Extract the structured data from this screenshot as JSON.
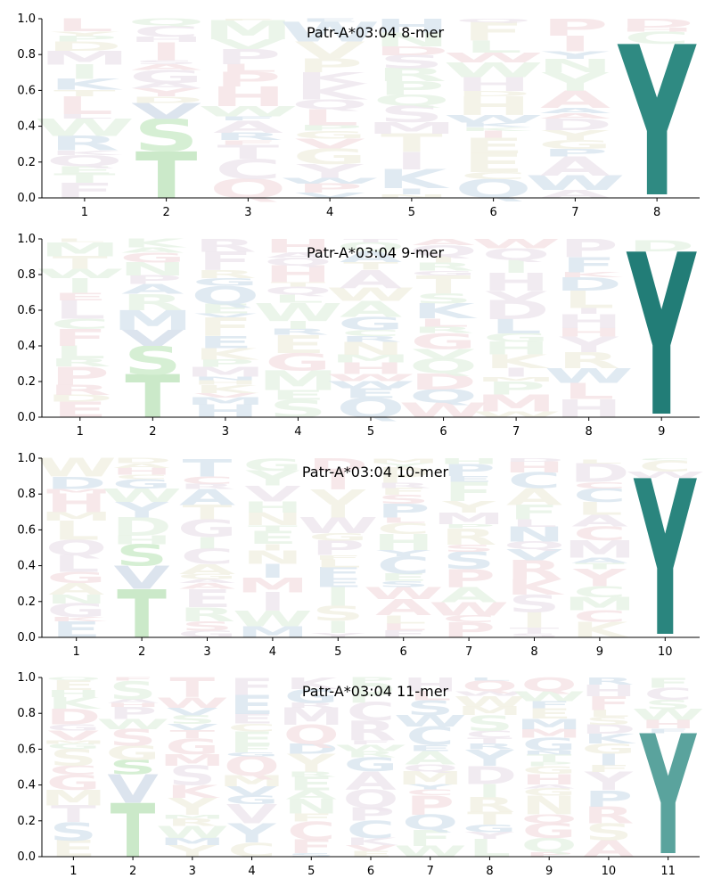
{
  "colors": {
    "background": "#ffffff",
    "axis": "#000000",
    "faded_letters": [
      "#dbe6f0",
      "#e8f3e6",
      "#f6e4e6",
      "#efe7ef",
      "#f2f1e4"
    ],
    "faded_S": "#d6efd4",
    "faded_T": "#cbe9c9",
    "faded_V": "#dce4ee"
  },
  "chart_data": [
    {
      "type": "sequence-logo",
      "title": "Patr-A*03:04 8-mer",
      "xlabel": "",
      "ylabel": "",
      "ylim": [
        0,
        1.0
      ],
      "yticks": [
        "0.0",
        "0.2",
        "0.4",
        "0.6",
        "0.8",
        "1.0"
      ],
      "grid": false,
      "positions": [
        "1",
        "2",
        "3",
        "4",
        "5",
        "6",
        "7",
        "8"
      ],
      "anchor": {
        "position": "8",
        "letter": "Y",
        "value": 0.86,
        "color": "#2f8a82"
      },
      "highlights": [
        {
          "position": "2",
          "letter": "T",
          "value": 0.26,
          "color": "#cbe9c9"
        },
        {
          "position": "2",
          "letter": "S",
          "value": 0.18,
          "color": "#d6efd4"
        },
        {
          "position": "2",
          "letter": "V",
          "value": 0.09,
          "color": "#dce4ee"
        }
      ]
    },
    {
      "type": "sequence-logo",
      "title": "Patr-A*03:04 9-mer",
      "xlabel": "",
      "ylabel": "",
      "ylim": [
        0,
        1.0
      ],
      "yticks": [
        "0.0",
        "0.2",
        "0.4",
        "0.6",
        "0.8",
        "1.0"
      ],
      "grid": false,
      "positions": [
        "1",
        "2",
        "3",
        "4",
        "5",
        "6",
        "7",
        "8",
        "9"
      ],
      "anchor": {
        "position": "9",
        "letter": "Y",
        "value": 0.93,
        "color": "#227d77"
      },
      "highlights": [
        {
          "position": "2",
          "letter": "T",
          "value": 0.24,
          "color": "#cbe9c9"
        },
        {
          "position": "2",
          "letter": "S",
          "value": 0.16,
          "color": "#d6efd4"
        },
        {
          "position": "2",
          "letter": "V",
          "value": 0.09,
          "color": "#dce4ee"
        }
      ]
    },
    {
      "type": "sequence-logo",
      "title": "Patr-A*03:04 10-mer",
      "xlabel": "",
      "ylabel": "",
      "ylim": [
        0,
        1.0
      ],
      "yticks": [
        "0.0",
        "0.2",
        "0.4",
        "0.6",
        "0.8",
        "1.0"
      ],
      "grid": false,
      "positions": [
        "1",
        "2",
        "3",
        "4",
        "5",
        "6",
        "7",
        "8",
        "9",
        "10"
      ],
      "anchor": {
        "position": "10",
        "letter": "Y",
        "value": 0.89,
        "color": "#2a857e"
      },
      "highlights": [
        {
          "position": "2",
          "letter": "T",
          "value": 0.27,
          "color": "#cbe9c9"
        },
        {
          "position": "2",
          "letter": "V",
          "value": 0.13,
          "color": "#dce4ee"
        },
        {
          "position": "2",
          "letter": "S",
          "value": 0.12,
          "color": "#d6efd4"
        }
      ]
    },
    {
      "type": "sequence-logo",
      "title": "Patr-A*03:04 11-mer",
      "xlabel": "",
      "ylabel": "",
      "ylim": [
        0,
        1.0
      ],
      "yticks": [
        "0.0",
        "0.2",
        "0.4",
        "0.6",
        "0.8",
        "1.0"
      ],
      "grid": false,
      "positions": [
        "1",
        "2",
        "3",
        "4",
        "5",
        "6",
        "7",
        "8",
        "9",
        "10",
        "11"
      ],
      "anchor": {
        "position": "11",
        "letter": "Y",
        "value": 0.69,
        "color": "#5aa39d"
      },
      "highlights": [
        {
          "position": "2",
          "letter": "T",
          "value": 0.3,
          "color": "#cbe9c9"
        },
        {
          "position": "2",
          "letter": "V",
          "value": 0.16,
          "color": "#dce4ee"
        },
        {
          "position": "2",
          "letter": "S",
          "value": 0.08,
          "color": "#d6efd4"
        }
      ]
    }
  ]
}
